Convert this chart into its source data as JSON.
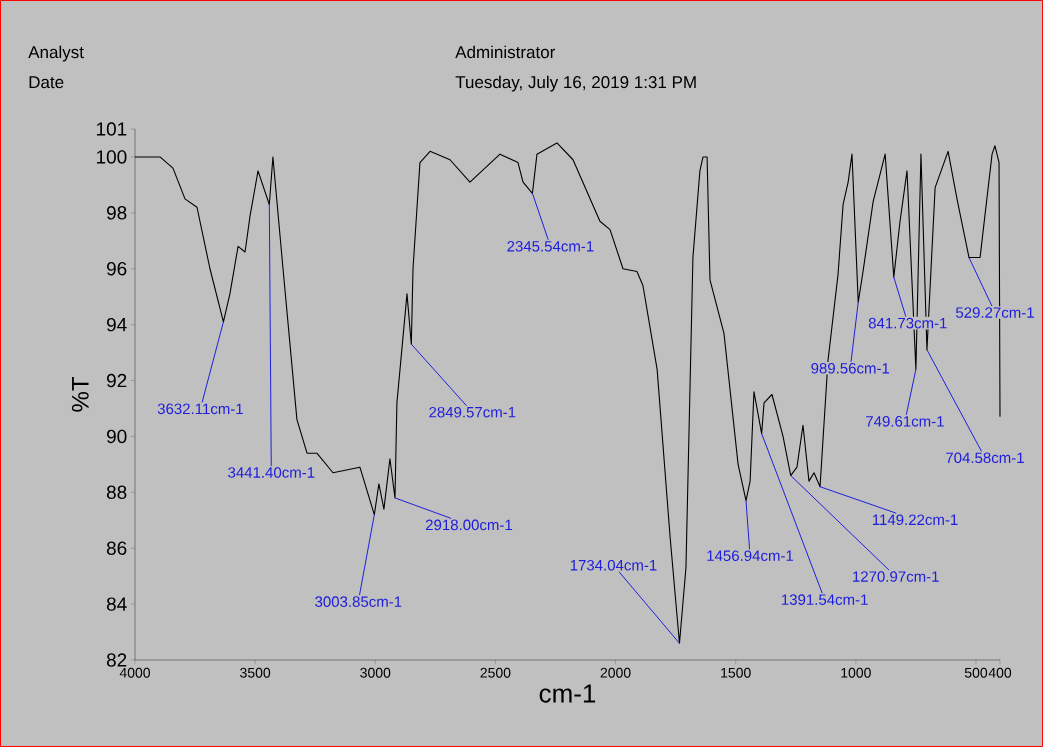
{
  "chart_data": {
    "type": "line",
    "xlabel": "cm-1",
    "ylabel": "%T",
    "xlim": [
      4000,
      400
    ],
    "ylim": [
      82,
      101
    ],
    "xticks": [
      4000,
      3500,
      3000,
      2500,
      2000,
      1500,
      1000,
      500,
      400
    ],
    "yticks": [
      82,
      84,
      86,
      88,
      90,
      92,
      94,
      96,
      98,
      100,
      101
    ],
    "x": [
      4000,
      3896,
      3842,
      3792,
      3742,
      3688,
      3632,
      3605,
      3575,
      3571,
      3542,
      3521,
      3488,
      3441,
      3426,
      3384,
      3326,
      3284,
      3243,
      3176,
      3064,
      3004,
      2985,
      2964,
      2939,
      2918,
      2910,
      2868,
      2850,
      2843,
      2814,
      2772,
      2689,
      2606,
      2481,
      2406,
      2385,
      2346,
      2327,
      2244,
      2177,
      2065,
      2023,
      1969,
      1911,
      1886,
      1827,
      1773,
      1734,
      1707,
      1678,
      1649,
      1636,
      1619,
      1607,
      1549,
      1490,
      1457,
      1440,
      1424,
      1392,
      1382,
      1349,
      1303,
      1271,
      1245,
      1220,
      1195,
      1174,
      1149,
      1116,
      1074,
      1053,
      1032,
      1016,
      990,
      970,
      928,
      878,
      842,
      816,
      787,
      750,
      729,
      704,
      670,
      616,
      579,
      529,
      483,
      433,
      421,
      404,
      400
    ],
    "series": [
      {
        "color": "#000000",
        "values": [
          100.0,
          100.0,
          99.6,
          98.5,
          98.2,
          96.0,
          94.1,
          95.1,
          96.6,
          96.8,
          96.6,
          97.9,
          99.5,
          98.3,
          100.0,
          96.0,
          90.6,
          89.4,
          89.4,
          88.7,
          88.9,
          87.2,
          88.3,
          87.4,
          89.2,
          87.8,
          91.2,
          95.1,
          93.3,
          96.0,
          99.8,
          100.2,
          99.9,
          99.1,
          100.1,
          99.8,
          99.1,
          98.7,
          100.1,
          100.5,
          99.9,
          97.7,
          97.4,
          96.0,
          95.9,
          95.4,
          92.4,
          86.4,
          82.6,
          85.3,
          96.4,
          99.5,
          100.0,
          100.0,
          95.6,
          93.7,
          89.0,
          87.7,
          88.4,
          91.6,
          90.1,
          91.2,
          91.5,
          90.0,
          88.6,
          88.9,
          90.4,
          88.4,
          88.7,
          88.2,
          92.7,
          95.8,
          98.3,
          99.1,
          100.1,
          94.8,
          95.9,
          98.4,
          100.1,
          95.7,
          97.7,
          99.5,
          92.4,
          100.1,
          93.1,
          98.9,
          100.2,
          98.5,
          96.4,
          96.4,
          100.1,
          100.4,
          99.8,
          90.7
        ]
      }
    ],
    "annotations": [
      "Analyst",
      "Administrator",
      "Date",
      "Tuesday, July 16, 2019 1:31 PM",
      {
        "text": "3632.11cm-1",
        "x": 3632,
        "y": 94.1
      },
      {
        "text": "3441.40cm-1",
        "x": 3441,
        "y": 98.3
      },
      {
        "text": "3003.85cm-1",
        "x": 3004,
        "y": 87.2
      },
      {
        "text": "2918.00cm-1",
        "x": 2918,
        "y": 87.8
      },
      {
        "text": "2849.57cm-1",
        "x": 2850,
        "y": 93.3
      },
      {
        "text": "2345.54cm-1",
        "x": 2346,
        "y": 98.7
      },
      {
        "text": "1734.04cm-1",
        "x": 1734,
        "y": 82.6
      },
      {
        "text": "1456.94cm-1",
        "x": 1457,
        "y": 87.7
      },
      {
        "text": "1391.54cm-1",
        "x": 1392,
        "y": 90.1
      },
      {
        "text": "1270.97cm-1",
        "x": 1271,
        "y": 88.6
      },
      {
        "text": "1149.22cm-1",
        "x": 1149,
        "y": 88.2
      },
      {
        "text": "989.56cm-1",
        "x": 990,
        "y": 94.8
      },
      {
        "text": "841.73cm-1",
        "x": 842,
        "y": 95.7
      },
      {
        "text": "749.61cm-1",
        "x": 750,
        "y": 92.4
      },
      {
        "text": "704.58cm-1",
        "x": 704,
        "y": 93.1
      },
      {
        "text": "529.27cm-1",
        "x": 529,
        "y": 96.4
      }
    ]
  }
}
